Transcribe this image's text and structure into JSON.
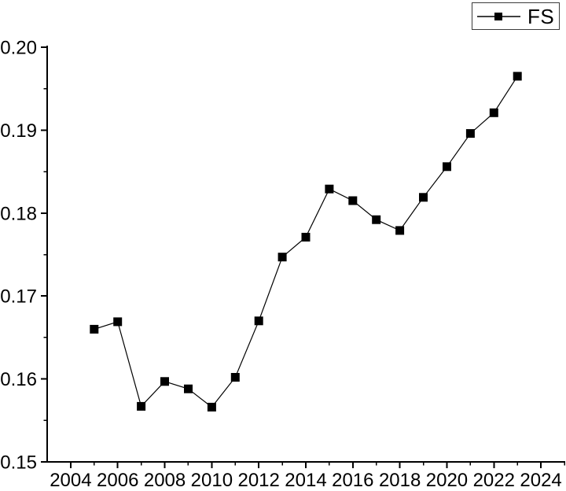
{
  "figure": {
    "background": "#ffffff",
    "axis_color": "#000000",
    "text_color": "#000000"
  },
  "legend": {
    "label": "FS",
    "position": "top-right"
  },
  "chart_data": {
    "type": "line",
    "title": "",
    "xlabel": "",
    "ylabel": "",
    "grid": false,
    "legend_position": "top-right",
    "xlim": [
      2003,
      2025
    ],
    "ylim": [
      0.15,
      0.2
    ],
    "x_major_ticks": [
      2004,
      2006,
      2008,
      2010,
      2012,
      2014,
      2016,
      2018,
      2020,
      2022,
      2024
    ],
    "x_tick_labels": [
      "2004",
      "2006",
      "2008",
      "2010",
      "2012",
      "2014",
      "2016",
      "2018",
      "2020",
      "2022",
      "2024"
    ],
    "x_minor_ticks": [
      2005,
      2007,
      2009,
      2011,
      2013,
      2015,
      2017,
      2019,
      2021,
      2023,
      2025
    ],
    "y_major_ticks": [
      0.15,
      0.16,
      0.17,
      0.18,
      0.19,
      0.2
    ],
    "y_tick_labels": [
      "0.15",
      "0.16",
      "0.17",
      "0.18",
      "0.19",
      "0.20"
    ],
    "y_minor_ticks": [
      0.155,
      0.165,
      0.175,
      0.185,
      0.195
    ],
    "series": [
      {
        "name": "FS",
        "line_color": "#000000",
        "line_width": 1.2,
        "marker": "square",
        "marker_color": "#000000",
        "marker_size": 11,
        "x": [
          2005,
          2006,
          2007,
          2008,
          2009,
          2010,
          2011,
          2012,
          2013,
          2014,
          2015,
          2016,
          2017,
          2018,
          2019,
          2020,
          2021,
          2022,
          2023
        ],
        "values": [
          0.166,
          0.1669,
          0.1567,
          0.1597,
          0.1588,
          0.1566,
          0.1602,
          0.167,
          0.1747,
          0.1771,
          0.1829,
          0.1815,
          0.1792,
          0.1779,
          0.1819,
          0.1856,
          0.1896,
          0.1921,
          0.1965
        ]
      }
    ]
  }
}
